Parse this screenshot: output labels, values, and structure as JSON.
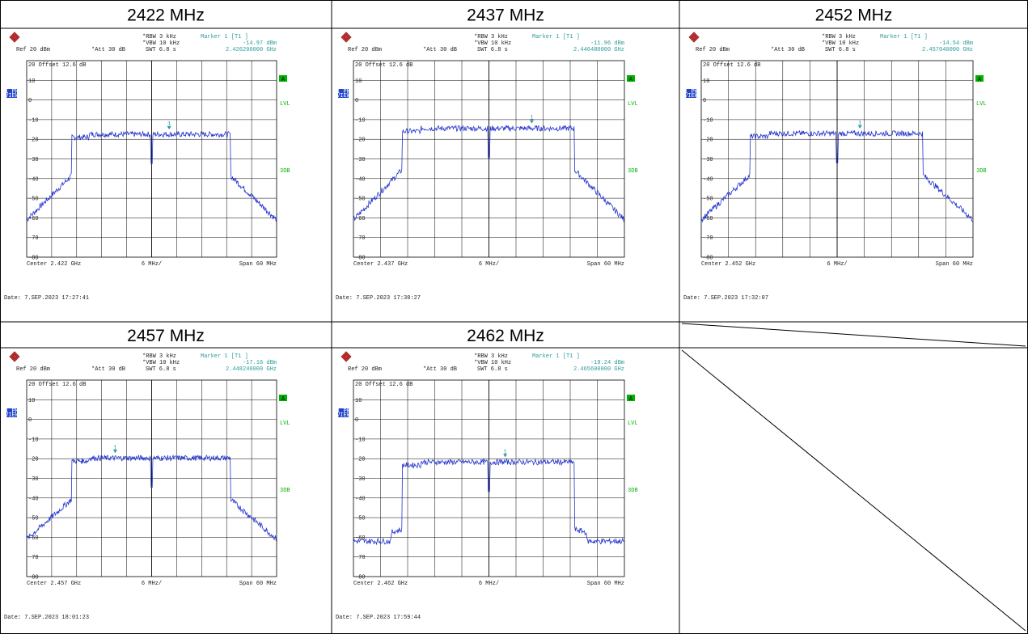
{
  "table": {
    "headers": [
      "2422 MHz",
      "2437 MHz",
      "2452 MHz",
      "2457 MHz",
      "2462 MHz"
    ]
  },
  "common": {
    "rbw": "*RBW 3 kHz",
    "vbw": "*VBW 10 kHz",
    "swt": "SWT 6.8 s",
    "ref": "Ref  20 dBm",
    "att": "*Att  30 dB",
    "marker": "Marker 1 [T1 ]",
    "offset": "20 Offset  12.6 dB",
    "view": [
      "1 PK",
      "VIEW"
    ],
    "a": "A",
    "lvl": "LVL",
    "db3": "3DB",
    "div": "6 MHz/",
    "span": "Span 60 MHz",
    "marker_num": "1",
    "ticks": [
      "10",
      "0",
      "-10",
      "-20",
      "-30",
      "-40",
      "-50",
      "-60",
      "-70",
      "-80"
    ]
  },
  "panels": [
    {
      "marker_value": "-14.97 dBm",
      "marker_freq": "2.426200000 GHz",
      "center": "Center 2.422 GHz",
      "date": "Date: 7.SEP.2023  17:27:41"
    },
    {
      "marker_value": "-11.96 dBm",
      "marker_freq": "2.446480000 GHz",
      "center": "Center 2.437 GHz",
      "date": "Date: 7.SEP.2023  17:30:27"
    },
    {
      "marker_value": "-14.54 dBm",
      "marker_freq": "2.457040000 GHz",
      "center": "Center 2.452 GHz",
      "date": "Date: 7.SEP.2023  17:32:07"
    },
    {
      "marker_value": "-17.16 dBm",
      "marker_freq": "2.448240000 GHz",
      "center": "Center 2.457 GHz",
      "date": "Date: 7.SEP.2023  18:01:23"
    },
    {
      "marker_value": "-19.24 dBm",
      "marker_freq": "2.465600000 GHz",
      "center": "Center 2.462 GHz",
      "date": "Date: 7.SEP.2023  17:59:44"
    }
  ]
}
